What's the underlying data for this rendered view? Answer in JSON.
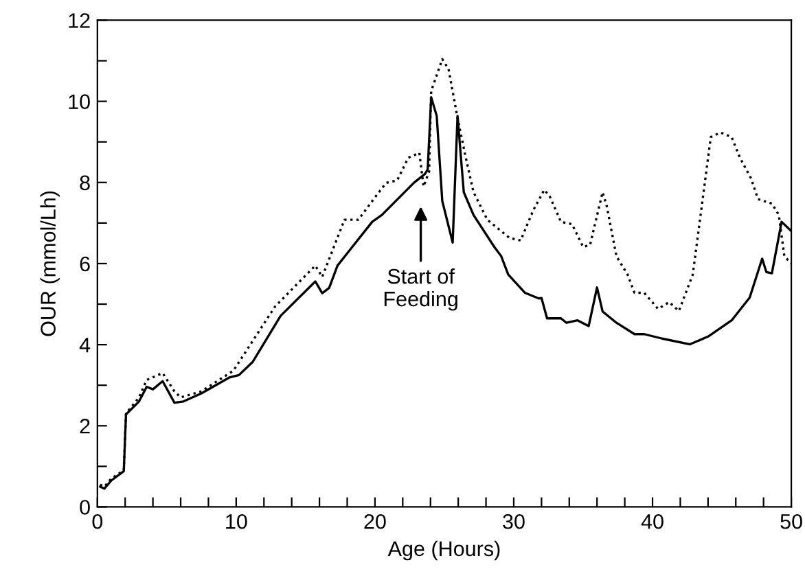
{
  "chart_data": {
    "type": "line",
    "xlabel": "Age (Hours)",
    "ylabel": "OUR (mmol/Lh)",
    "xlim": [
      0,
      50
    ],
    "ylim": [
      0,
      12
    ],
    "xticks": [
      0,
      {
        "value": 2,
        "label": null
      },
      {
        "value": 4,
        "label": null
      },
      {
        "value": 6,
        "label": null
      },
      {
        "value": 8,
        "label": null
      },
      10,
      {
        "value": 12,
        "label": null
      },
      {
        "value": 14,
        "label": null
      },
      {
        "value": 16,
        "label": null
      },
      {
        "value": 18,
        "label": null
      },
      20,
      {
        "value": 22,
        "label": null
      },
      {
        "value": 24,
        "label": null
      },
      {
        "value": 26,
        "label": null
      },
      {
        "value": 28,
        "label": null
      },
      30,
      {
        "value": 32,
        "label": null
      },
      {
        "value": 34,
        "label": null
      },
      {
        "value": 36,
        "label": null
      },
      {
        "value": 38,
        "label": null
      },
      40,
      {
        "value": 42,
        "label": null
      },
      {
        "value": 44,
        "label": null
      },
      {
        "value": 46,
        "label": null
      },
      {
        "value": 48,
        "label": null
      },
      50
    ],
    "yticks": [
      0,
      {
        "value": 1,
        "label": null
      },
      2,
      {
        "value": 3,
        "label": null
      },
      4,
      {
        "value": 5,
        "label": null
      },
      6,
      {
        "value": 7,
        "label": null
      },
      8,
      {
        "value": 9,
        "label": null
      },
      10,
      {
        "value": 11,
        "label": null
      },
      12
    ],
    "grid": false,
    "legend": false,
    "marker": "none",
    "annotations": [
      "Start of\nFeeding"
    ],
    "series": [
      {
        "color": "#000000",
        "line_style": "solid",
        "x": [
          0.2,
          0.5,
          1.0,
          1.9,
          2.06,
          3.0,
          3.55,
          4.0,
          4.7,
          5.55,
          6.2,
          7.5,
          9.5,
          10.2,
          11.2,
          13.2,
          15.7,
          16.2,
          16.7,
          17.3,
          19.8,
          20.5,
          22.8,
          23.6,
          23.8,
          24.05,
          24.45,
          24.85,
          25.6,
          25.95,
          26.4,
          27.1,
          28.6,
          29.1,
          29.6,
          30.8,
          31.8,
          32.0,
          32.4,
          33.4,
          33.8,
          34.6,
          35.4,
          36.0,
          36.4,
          37.4,
          38.7,
          39.4,
          40.7,
          42.7,
          44.0,
          45.7,
          47.0,
          47.9,
          48.2,
          48.6,
          49.3,
          50.0
        ],
        "values": [
          0.5,
          0.45,
          0.65,
          0.88,
          2.28,
          2.6,
          2.96,
          2.9,
          3.1,
          2.57,
          2.6,
          2.8,
          3.19,
          3.25,
          3.58,
          4.71,
          5.56,
          5.27,
          5.4,
          5.95,
          7.03,
          7.2,
          7.99,
          8.21,
          8.32,
          10.1,
          9.64,
          7.54,
          6.52,
          9.64,
          7.76,
          7.2,
          6.41,
          6.18,
          5.73,
          5.28,
          5.14,
          5.15,
          4.65,
          4.65,
          4.54,
          4.6,
          4.46,
          5.41,
          4.82,
          4.54,
          4.26,
          4.26,
          4.15,
          4.01,
          4.2,
          4.6,
          5.16,
          6.12,
          5.79,
          5.76,
          7.03,
          6.8
        ]
      },
      {
        "color": "#000000",
        "line_style": "dotted",
        "x": [
          0.2,
          0.5,
          1.0,
          1.9,
          2.06,
          3.0,
          3.55,
          4.7,
          5.55,
          6.0,
          7.5,
          9.8,
          12.8,
          15.7,
          16.2,
          17.8,
          18.8,
          19.8,
          20.8,
          21.6,
          22.4,
          23.2,
          23.5,
          23.9,
          24.05,
          24.85,
          25.3,
          25.95,
          26.5,
          27.1,
          28.1,
          29.7,
          30.5,
          31.4,
          32.2,
          32.6,
          33.4,
          34.2,
          35.0,
          35.5,
          36.4,
          36.7,
          37.4,
          38.2,
          38.7,
          39.4,
          40.4,
          41.2,
          41.9,
          42.9,
          44.2,
          44.9,
          45.7,
          46.3,
          47.1,
          47.6,
          48.6,
          49.1,
          49.5,
          50.0
        ],
        "values": [
          0.55,
          0.5,
          0.7,
          0.9,
          2.3,
          2.7,
          3.13,
          3.3,
          2.85,
          2.7,
          2.85,
          3.36,
          4.94,
          5.95,
          5.67,
          7.08,
          7.08,
          7.54,
          7.99,
          8.05,
          8.61,
          8.73,
          7.9,
          8.27,
          10.25,
          11.04,
          10.8,
          9.59,
          8.68,
          7.76,
          7.08,
          6.63,
          6.57,
          7.31,
          7.82,
          7.65,
          7.03,
          6.97,
          6.41,
          6.46,
          7.76,
          7.42,
          6.18,
          5.73,
          5.28,
          5.28,
          4.88,
          5.05,
          4.83,
          5.73,
          9.12,
          9.23,
          9.12,
          8.61,
          8.1,
          7.59,
          7.48,
          7.2,
          6.18,
          6.0
        ]
      }
    ]
  }
}
